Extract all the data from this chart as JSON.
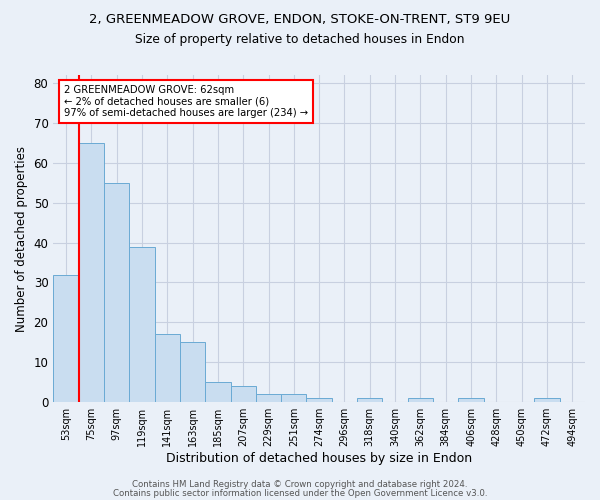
{
  "title_line1": "2, GREENMEADOW GROVE, ENDON, STOKE-ON-TRENT, ST9 9EU",
  "title_line2": "Size of property relative to detached houses in Endon",
  "xlabel": "Distribution of detached houses by size in Endon",
  "ylabel": "Number of detached properties",
  "categories": [
    "53sqm",
    "75sqm",
    "97sqm",
    "119sqm",
    "141sqm",
    "163sqm",
    "185sqm",
    "207sqm",
    "229sqm",
    "251sqm",
    "274sqm",
    "296sqm",
    "318sqm",
    "340sqm",
    "362sqm",
    "384sqm",
    "406sqm",
    "428sqm",
    "450sqm",
    "472sqm",
    "494sqm"
  ],
  "values": [
    32,
    65,
    55,
    39,
    17,
    15,
    5,
    4,
    2,
    2,
    1,
    0,
    1,
    0,
    1,
    0,
    1,
    0,
    0,
    1,
    0
  ],
  "bar_color": "#c9ddf0",
  "bar_edge_color": "#6aaad4",
  "annotation_line1": "2 GREENMEADOW GROVE: 62sqm",
  "annotation_line2": "← 2% of detached houses are smaller (6)",
  "annotation_line3": "97% of semi-detached houses are larger (234) →",
  "annotation_box_color": "white",
  "annotation_box_edge_color": "red",
  "ylim": [
    0,
    82
  ],
  "yticks": [
    0,
    10,
    20,
    30,
    40,
    50,
    60,
    70,
    80
  ],
  "grid_color": "#c8d0e0",
  "background_color": "#eaf0f8",
  "footer_line1": "Contains HM Land Registry data © Crown copyright and database right 2024.",
  "footer_line2": "Contains public sector information licensed under the Open Government Licence v3.0."
}
